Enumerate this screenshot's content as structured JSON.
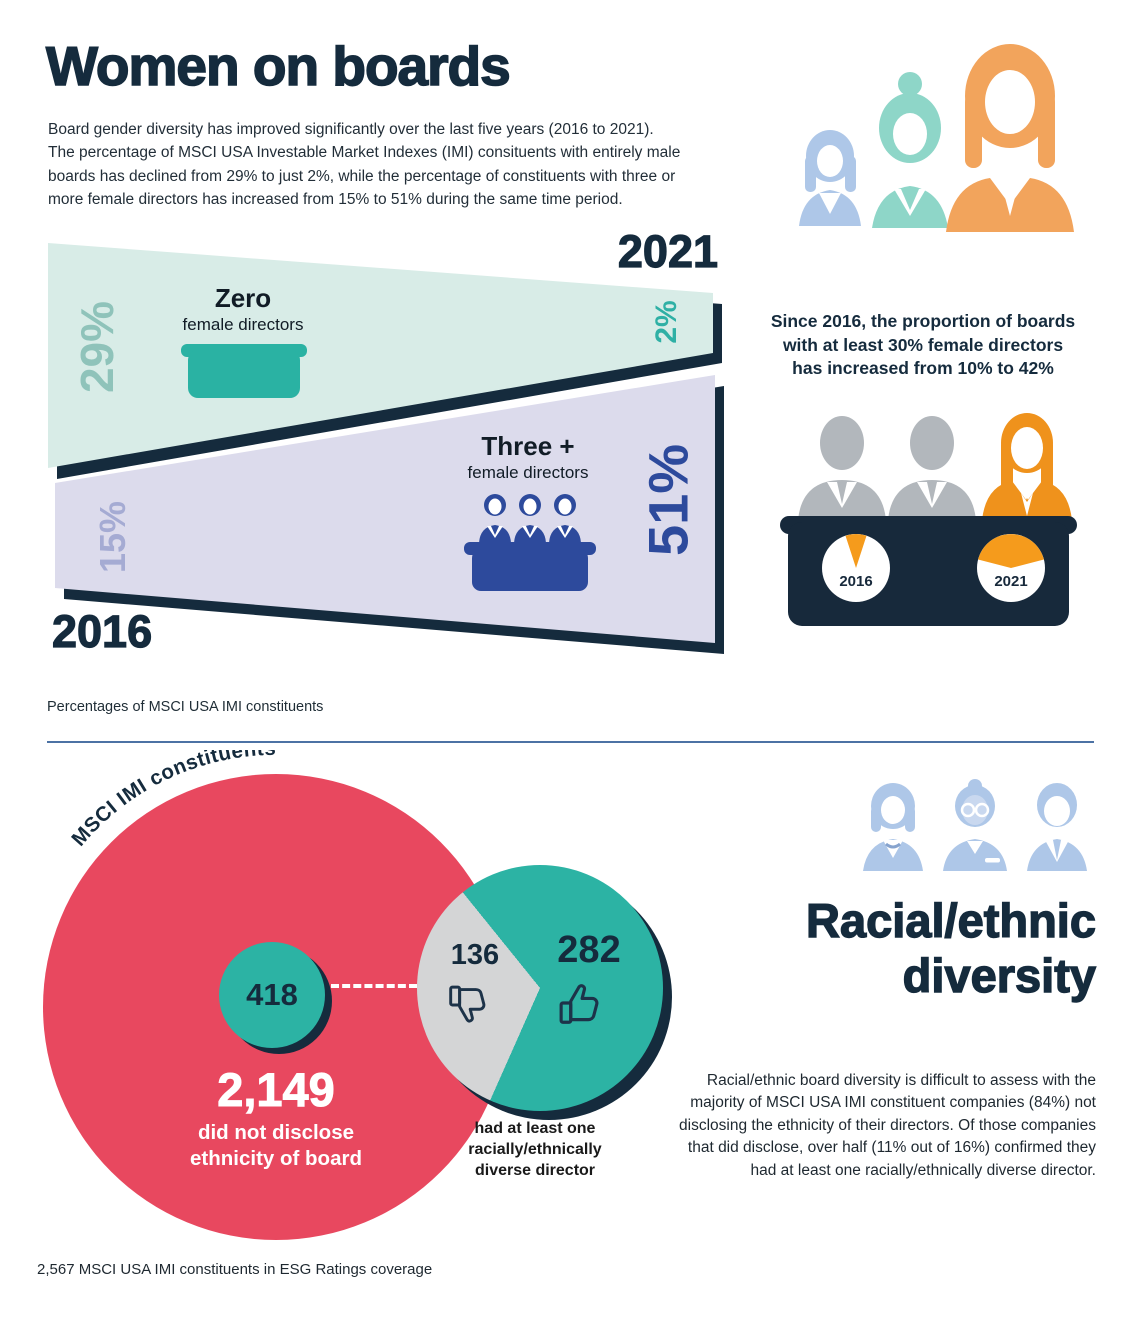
{
  "colors": {
    "navy": "#152B3D",
    "mint": "#D8ECE7",
    "lavender": "#DCDBEC",
    "teal": "#2CB3A4",
    "muted_teal": "#8FC3BA",
    "muted_lavender": "#A5ABD3",
    "royal_blue": "#2D4A9C",
    "orange_light": "#F2A45C",
    "orange": "#EF921C",
    "pink": "#E8485F",
    "gray_slice": "#D4D5D6",
    "silhouette_gray": "#B2B7BC",
    "light_blue": "#AEC7E8",
    "divider_blue": "#4C72A4"
  },
  "header": {
    "title": "Women on boards",
    "intro": "Board gender diversity has improved significantly over the last five years (2016 to 2021).\nThe percentage of MSCI USA Investable Market Indexes (IMI) consituents with entirely male\nboards has declined from 29% to just 2%, while the percentage of constituents with three or\nmore female directors has increased from 15% to 51% during the same time period."
  },
  "funnel": {
    "year_top": "2021",
    "year_bottom": "2016",
    "zero": {
      "left_pct": "29%",
      "right_pct": "2%",
      "label": "Zero",
      "sublabel": "female directors"
    },
    "three": {
      "left_pct": "15%",
      "right_pct": "51%",
      "label": "Three +",
      "sublabel": "female directors"
    },
    "caption": "Percentages of MSCI USA IMI constituents"
  },
  "callout": {
    "text": "Since 2016, the proportion of boards\nwith at least 30% female directors\nhas increased from 10% to 42%",
    "pie2016": {
      "label": "2016",
      "pct": 10
    },
    "pie2021": {
      "label": "2021",
      "pct": 42
    }
  },
  "bottom": {
    "big": {
      "arc_label": "MSCI IMI constituents",
      "inner_value": "418",
      "value": "2,149",
      "caption": "did not disclose\nethnicity of board"
    },
    "pie": {
      "gray_value": "136",
      "teal_value": "282",
      "gray": 136,
      "teal": 282,
      "label": "had at least one\nracially/ethnically\ndiverse director"
    },
    "title": "Racial/ethnic\ndiversity",
    "paragraph": "Racial/ethnic board diversity is difficult to assess with the\nmajority of MSCI USA IMI constituent companies (84%) not\ndisclosing the ethnicity of their directors. Of those companies\nthat did disclose, over half (11% out of 16%) confirmed they\nhad at least one racially/ethnically diverse director."
  },
  "footer": {
    "note": "2,567 MSCI USA IMI constituents in ESG Ratings coverage"
  },
  "chart_data": [
    {
      "type": "area",
      "title": "Women on boards — percentages of MSCI USA IMI constituents",
      "categories": [
        "2016",
        "2021"
      ],
      "series": [
        {
          "name": "Zero female directors",
          "values": [
            29,
            2
          ]
        },
        {
          "name": "Three + female directors",
          "values": [
            15,
            51
          ]
        }
      ],
      "unit": "%"
    },
    {
      "type": "pie",
      "title": "Boards with at least 30% female directors — 2016",
      "labels": [
        "at least 30% female directors",
        "other"
      ],
      "values": [
        10,
        90
      ],
      "unit": "%"
    },
    {
      "type": "pie",
      "title": "Boards with at least 30% female directors — 2021",
      "labels": [
        "at least 30% female directors",
        "other"
      ],
      "values": [
        42,
        58
      ],
      "unit": "%"
    },
    {
      "type": "pie",
      "title": "Ethnicity disclosure of MSCI USA IMI constituents",
      "labels": [
        "did not disclose ethnicity of board",
        "disclosed"
      ],
      "values": [
        2149,
        418
      ],
      "total": 2567
    },
    {
      "type": "pie",
      "title": "Of companies that disclosed ethnicity",
      "labels": [
        "no racially/ethnically diverse director",
        "had at least one racially/ethnically diverse director"
      ],
      "values": [
        136,
        282
      ]
    }
  ]
}
